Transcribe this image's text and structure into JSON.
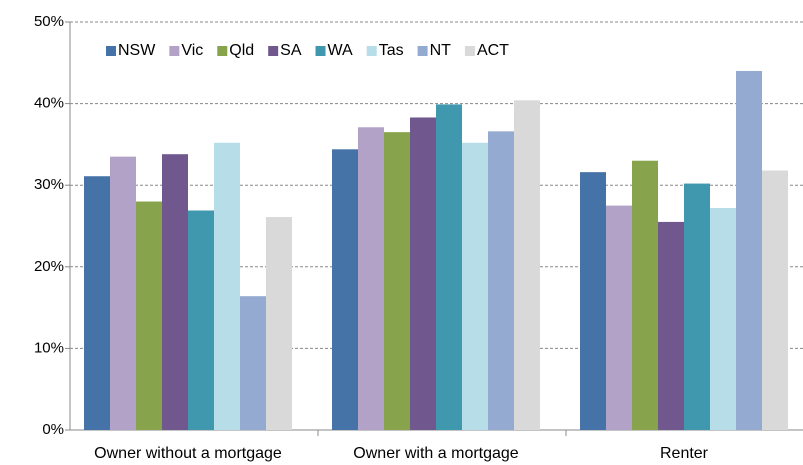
{
  "chart_data": {
    "type": "bar",
    "categories": [
      "Owner without a mortgage",
      "Owner with a mortgage",
      "Renter"
    ],
    "series": [
      {
        "name": "NSW",
        "color": "#4572a7",
        "values": [
          31.1,
          34.4,
          31.6
        ]
      },
      {
        "name": "Vic",
        "color": "#b3a2c7",
        "values": [
          33.5,
          37.1,
          27.5
        ]
      },
      {
        "name": "Qld",
        "color": "#87a34b",
        "values": [
          28.0,
          36.5,
          33.0
        ]
      },
      {
        "name": "SA",
        "color": "#70588f",
        "values": [
          33.8,
          38.3,
          25.5
        ]
      },
      {
        "name": "WA",
        "color": "#3f98ae",
        "values": [
          26.9,
          39.9,
          30.2
        ]
      },
      {
        "name": "Tas",
        "color": "#b7dde8",
        "values": [
          35.2,
          35.2,
          27.2
        ]
      },
      {
        "name": "NT",
        "color": "#95aad1",
        "values": [
          16.4,
          36.6,
          44.0
        ]
      },
      {
        "name": "ACT",
        "color": "#d9d9d9",
        "values": [
          26.1,
          40.4,
          31.8
        ]
      }
    ],
    "ylim": [
      0,
      50
    ],
    "yticks": [
      {
        "value": 0,
        "label": "0%"
      },
      {
        "value": 10,
        "label": "10%"
      },
      {
        "value": 20,
        "label": "20%"
      },
      {
        "value": 30,
        "label": "30%"
      },
      {
        "value": 40,
        "label": "40%"
      },
      {
        "value": 50,
        "label": "50%"
      }
    ],
    "grid": true,
    "legend": "top"
  }
}
